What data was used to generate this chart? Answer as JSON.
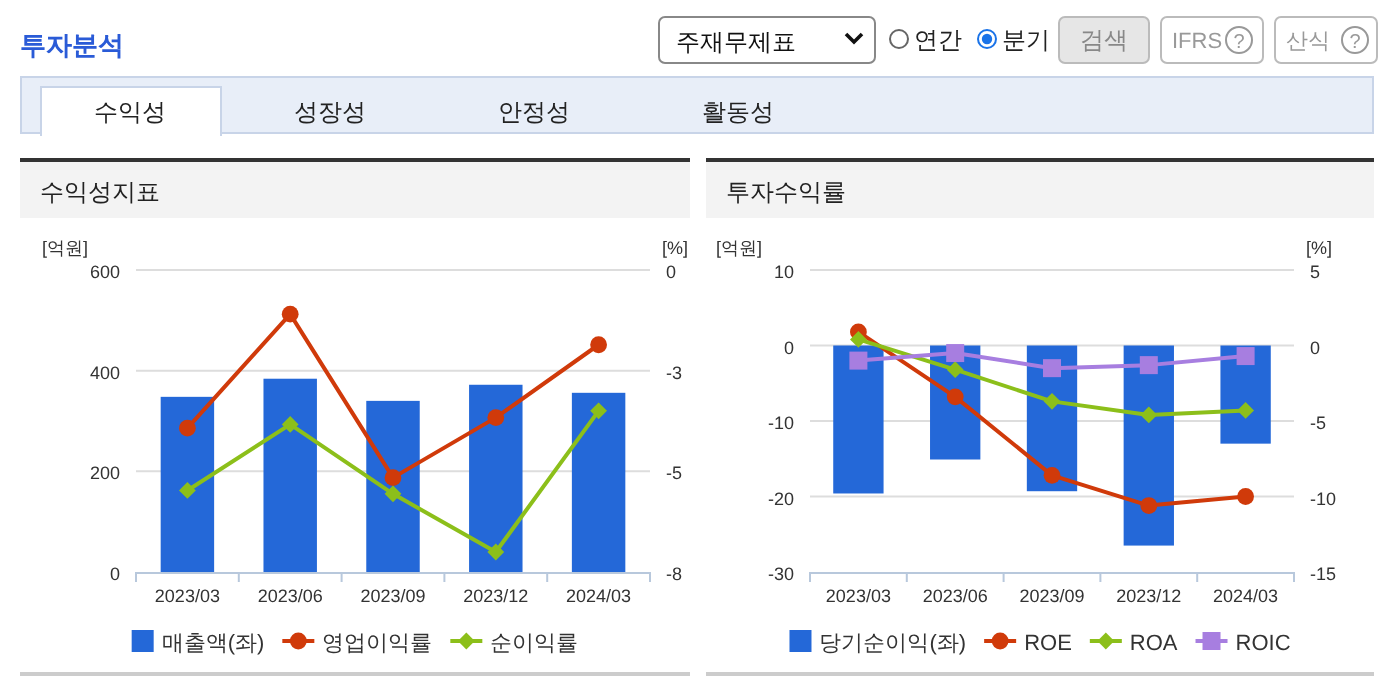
{
  "chart_data": [
    {
      "type": "other",
      "annotations": [
        "투자분석",
        "주재무제표",
        "연간",
        "분기",
        "검색",
        "IFRS",
        "?",
        "산식",
        "?",
        "수익성",
        "성장성",
        "안정성",
        "활동성"
      ]
    },
    {
      "type": "bar",
      "title": "수익성지표",
      "ylabel": "[억원]",
      "y2label": "[%]",
      "categories": [
        "2023/03",
        "2023/06",
        "2023/09",
        "2023/12",
        "2024/03"
      ],
      "ylim": [
        0,
        600
      ],
      "yticks": [
        0,
        200,
        400,
        600
      ],
      "y2lim": [
        -8,
        0
      ],
      "y2ticks": [
        0,
        {
          "value": -2.667,
          "label": "-3"
        },
        {
          "value": -5.333,
          "label": "-5"
        },
        -8
      ],
      "grid": "y",
      "legend": "bottom",
      "series": [
        {
          "name": "매출액(좌)",
          "color": "#2468d8",
          "values": [
            348,
            384,
            340,
            372,
            356
          ]
        },
        {
          "name": "영업이익률",
          "type": "line",
          "axis": "y2",
          "marker": "circle",
          "color": "#d03a0a",
          "values": [
            -4.19,
            -1.17,
            -5.5,
            -3.91,
            -1.98
          ]
        },
        {
          "name": "순이익률",
          "type": "line",
          "axis": "y2",
          "marker": "diamond",
          "color": "#8cbf1a",
          "values": [
            -5.84,
            -4.09,
            -5.93,
            -7.47,
            -3.73
          ]
        }
      ]
    },
    {
      "type": "bar",
      "title": "투자수익률",
      "ylabel": "[억원]",
      "y2label": "[%]",
      "categories": [
        "2023/03",
        "2023/06",
        "2023/09",
        "2023/12",
        "2024/03"
      ],
      "ylim": [
        -30,
        10
      ],
      "yticks": [
        10,
        0,
        -10,
        -20,
        -30
      ],
      "y2lim": [
        -15,
        5
      ],
      "y2ticks": [
        5,
        0,
        -5,
        -10,
        -15
      ],
      "grid": "y",
      "legend": "bottom",
      "series": [
        {
          "name": "당기순이익(좌)",
          "color": "#2468d8",
          "values": [
            -19.6,
            -15.1,
            -19.3,
            -26.5,
            -13.0
          ]
        },
        {
          "name": "ROE",
          "type": "line",
          "axis": "y2",
          "marker": "circle",
          "color": "#d03a0a",
          "values": [
            0.9,
            -3.4,
            -8.6,
            -10.6,
            -10.0
          ]
        },
        {
          "name": "ROA",
          "type": "line",
          "axis": "y2",
          "marker": "diamond",
          "color": "#8cbf1a",
          "values": [
            0.4,
            -1.6,
            -3.7,
            -4.6,
            -4.3
          ]
        },
        {
          "name": "ROIC",
          "type": "line",
          "axis": "y2",
          "marker": "square",
          "color": "#a77ee0",
          "values": [
            -1.0,
            -0.5,
            -1.5,
            -1.3,
            -0.7
          ]
        }
      ]
    }
  ]
}
